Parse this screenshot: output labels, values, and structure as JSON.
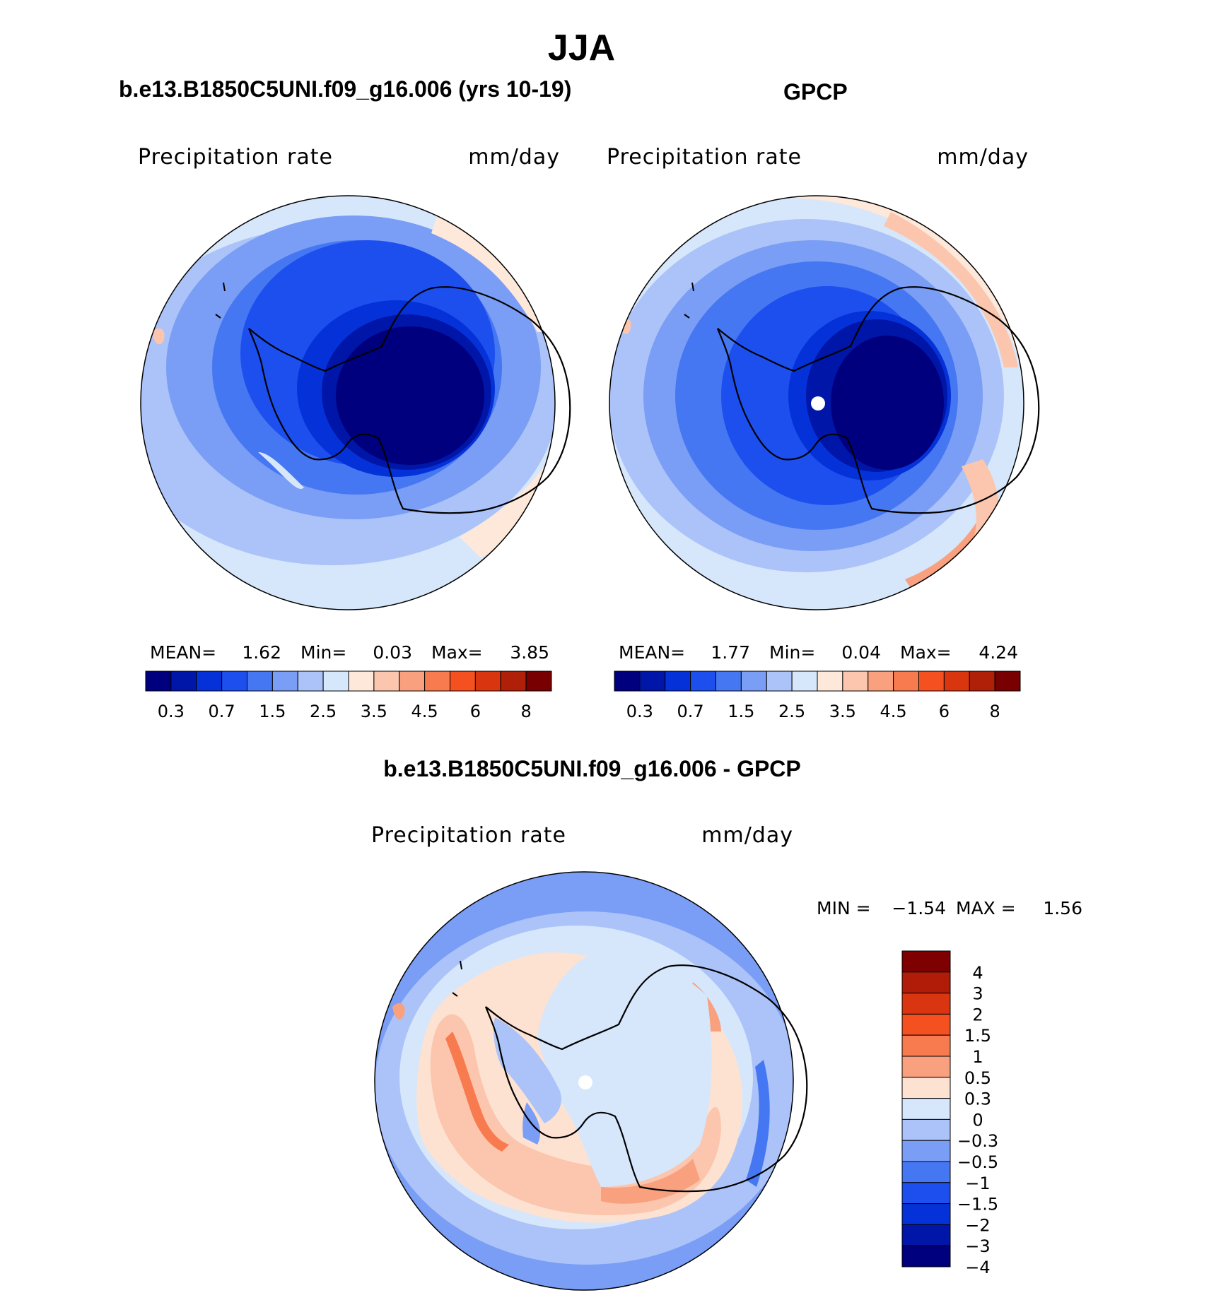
{
  "title": "JJA",
  "panels": [
    {
      "id": "model",
      "title": "b.e13.B1850C5UNI.f09_g16.006 (yrs 10-19)",
      "variable": "Precipitation rate",
      "units": "mm/day",
      "stats": {
        "mean_label": "MEAN=",
        "mean": "1.62",
        "min_label": "Min=",
        "min": "0.03",
        "max_label": "Max=",
        "max": "3.85"
      }
    },
    {
      "id": "obs",
      "title": "GPCP",
      "variable": "Precipitation rate",
      "units": "mm/day",
      "stats": {
        "mean_label": "MEAN=",
        "mean": "1.77",
        "min_label": "Min=",
        "min": "0.04",
        "max_label": "Max=",
        "max": "4.24"
      }
    },
    {
      "id": "diff",
      "title": "b.e13.B1850C5UNI.f09_g16.006 - GPCP",
      "variable": "Precipitation rate",
      "units": "mm/day",
      "stats": {
        "min_label": "MIN =",
        "min": "−1.54",
        "max_label": "MAX =",
        "max": "1.56"
      }
    }
  ],
  "precip_colorbar": {
    "colors": [
      "#00007f",
      "#0016a8",
      "#0532d8",
      "#1d4fef",
      "#4677f2",
      "#7a9df5",
      "#abc3f8",
      "#d6e6fb",
      "#fde8d9",
      "#fbc6ad",
      "#f9a07e",
      "#f87a4f",
      "#f5501f",
      "#d93610",
      "#b02008",
      "#780000"
    ],
    "labels": [
      "0.3",
      "0.7",
      "1.5",
      "2.5",
      "3.5",
      "4.5",
      "6",
      "8"
    ]
  },
  "diff_colorbar": {
    "colors": [
      "#7f0000",
      "#b01c08",
      "#d93510",
      "#f5501f",
      "#f87a4f",
      "#f9a07e",
      "#fde2d2",
      "#d6e6fb",
      "#abc3f8",
      "#7a9df5",
      "#4677f2",
      "#1d4fef",
      "#0532d8",
      "#0016a8",
      "#00007f"
    ],
    "labels": [
      "4",
      "3",
      "2",
      "1.5",
      "1",
      "0.5",
      "0.3",
      "0",
      "−0.3",
      "−0.5",
      "−1",
      "−1.5",
      "−2",
      "−3",
      "−4"
    ]
  }
}
